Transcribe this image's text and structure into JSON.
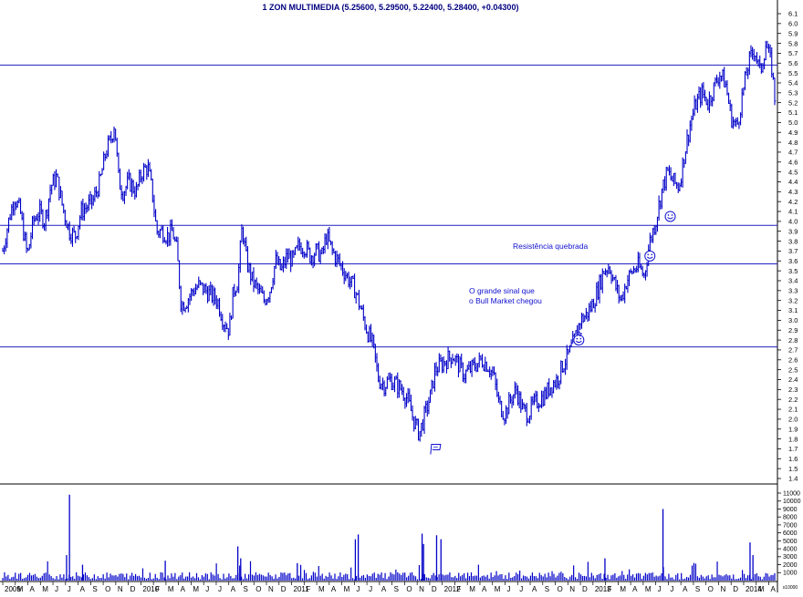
{
  "chart_data": {
    "type": "bar",
    "title": "1 ZON MULTIMEDIA (5.25600, 5.29500, 5.22400, 5.28400, +0.04300)",
    "price_panel": {
      "type": "ohlc",
      "ylim": [
        1.4,
        6.1
      ],
      "yticks": [
        "6.1",
        "6.0",
        "5.9",
        "5.8",
        "5.7",
        "5.6",
        "5.5",
        "5.4",
        "5.3",
        "5.2",
        "5.1",
        "5.0",
        "4.9",
        "4.8",
        "4.7",
        "4.6",
        "4.5",
        "4.4",
        "4.3",
        "4.2",
        "4.1",
        "4.0",
        "3.9",
        "3.8",
        "3.7",
        "3.6",
        "3.5",
        "3.4",
        "3.3",
        "3.2",
        "3.1",
        "3.0",
        "2.9",
        "2.8",
        "2.7",
        "2.6",
        "2.5",
        "2.4",
        "2.3",
        "2.2",
        "2.1",
        "2.0",
        "1.9",
        "1.8",
        "1.7",
        "1.6",
        "1.5",
        "1.4"
      ],
      "x_range": [
        2009.0,
        2014.32
      ],
      "price_path": [
        [
          2009.0,
          3.7
        ],
        [
          2009.04,
          4.0
        ],
        [
          2009.08,
          4.25
        ],
        [
          2009.12,
          4.1
        ],
        [
          2009.17,
          3.65
        ],
        [
          2009.21,
          4.0
        ],
        [
          2009.25,
          4.1
        ],
        [
          2009.29,
          4.0
        ],
        [
          2009.33,
          4.35
        ],
        [
          2009.37,
          4.45
        ],
        [
          2009.42,
          4.1
        ],
        [
          2009.46,
          3.9
        ],
        [
          2009.5,
          3.85
        ],
        [
          2009.54,
          4.1
        ],
        [
          2009.58,
          4.15
        ],
        [
          2009.62,
          4.2
        ],
        [
          2009.67,
          4.4
        ],
        [
          2009.71,
          4.7
        ],
        [
          2009.75,
          4.85
        ],
        [
          2009.77,
          5.0
        ],
        [
          2009.8,
          4.4
        ],
        [
          2009.83,
          4.3
        ],
        [
          2009.87,
          4.4
        ],
        [
          2009.92,
          4.3
        ],
        [
          2009.96,
          4.5
        ],
        [
          2010.0,
          4.55
        ],
        [
          2010.03,
          4.3
        ],
        [
          2010.06,
          3.9
        ],
        [
          2010.1,
          3.9
        ],
        [
          2010.14,
          3.85
        ],
        [
          2010.17,
          3.9
        ],
        [
          2010.2,
          3.7
        ],
        [
          2010.23,
          3.15
        ],
        [
          2010.27,
          3.2
        ],
        [
          2010.31,
          3.3
        ],
        [
          2010.35,
          3.35
        ],
        [
          2010.4,
          3.3
        ],
        [
          2010.44,
          3.25
        ],
        [
          2010.48,
          3.2
        ],
        [
          2010.52,
          3.0
        ],
        [
          2010.56,
          2.9
        ],
        [
          2010.59,
          3.3
        ],
        [
          2010.62,
          3.4
        ],
        [
          2010.65,
          3.95
        ],
        [
          2010.68,
          3.6
        ],
        [
          2010.72,
          3.4
        ],
        [
          2010.76,
          3.3
        ],
        [
          2010.8,
          3.2
        ],
        [
          2010.84,
          3.3
        ],
        [
          2010.88,
          3.6
        ],
        [
          2010.92,
          3.5
        ],
        [
          2010.96,
          3.65
        ],
        [
          2011.0,
          3.6
        ],
        [
          2011.04,
          3.75
        ],
        [
          2011.08,
          3.75
        ],
        [
          2011.12,
          3.65
        ],
        [
          2011.16,
          3.7
        ],
        [
          2011.2,
          3.65
        ],
        [
          2011.23,
          3.85
        ],
        [
          2011.27,
          3.7
        ],
        [
          2011.31,
          3.6
        ],
        [
          2011.35,
          3.5
        ],
        [
          2011.39,
          3.4
        ],
        [
          2011.43,
          3.3
        ],
        [
          2011.47,
          3.1
        ],
        [
          2011.51,
          2.9
        ],
        [
          2011.55,
          2.75
        ],
        [
          2011.59,
          2.4
        ],
        [
          2011.63,
          2.35
        ],
        [
          2011.67,
          2.4
        ],
        [
          2011.71,
          2.35
        ],
        [
          2011.75,
          2.3
        ],
        [
          2011.79,
          2.2
        ],
        [
          2011.83,
          2.0
        ],
        [
          2011.87,
          1.85
        ],
        [
          2011.91,
          2.05
        ],
        [
          2011.95,
          2.25
        ],
        [
          2011.98,
          2.5
        ],
        [
          2012.02,
          2.55
        ],
        [
          2012.06,
          2.6
        ],
        [
          2012.1,
          2.65
        ],
        [
          2012.14,
          2.55
        ],
        [
          2012.18,
          2.45
        ],
        [
          2012.22,
          2.5
        ],
        [
          2012.26,
          2.55
        ],
        [
          2012.3,
          2.6
        ],
        [
          2012.34,
          2.55
        ],
        [
          2012.38,
          2.45
        ],
        [
          2012.42,
          2.15
        ],
        [
          2012.46,
          2.05
        ],
        [
          2012.5,
          2.2
        ],
        [
          2012.54,
          2.3
        ],
        [
          2012.58,
          2.1
        ],
        [
          2012.62,
          2.05
        ],
        [
          2012.66,
          2.15
        ],
        [
          2012.7,
          2.2
        ],
        [
          2012.74,
          2.25
        ],
        [
          2012.78,
          2.35
        ],
        [
          2012.82,
          2.4
        ],
        [
          2012.86,
          2.55
        ],
        [
          2012.9,
          2.65
        ],
        [
          2012.94,
          2.8
        ],
        [
          2012.98,
          3.0
        ],
        [
          2013.02,
          3.05
        ],
        [
          2013.06,
          3.15
        ],
        [
          2013.1,
          3.3
        ],
        [
          2013.14,
          3.5
        ],
        [
          2013.18,
          3.55
        ],
        [
          2013.22,
          3.35
        ],
        [
          2013.26,
          3.2
        ],
        [
          2013.3,
          3.4
        ],
        [
          2013.34,
          3.5
        ],
        [
          2013.38,
          3.55
        ],
        [
          2013.42,
          3.45
        ],
        [
          2013.46,
          3.8
        ],
        [
          2013.5,
          4.0
        ],
        [
          2013.54,
          4.3
        ],
        [
          2013.58,
          4.5
        ],
        [
          2013.62,
          4.4
        ],
        [
          2013.66,
          4.35
        ],
        [
          2013.7,
          4.7
        ],
        [
          2013.74,
          5.0
        ],
        [
          2013.78,
          5.2
        ],
        [
          2013.82,
          5.3
        ],
        [
          2013.86,
          5.2
        ],
        [
          2013.9,
          5.35
        ],
        [
          2013.94,
          5.5
        ],
        [
          2013.98,
          5.4
        ],
        [
          2014.02,
          5.05
        ],
        [
          2014.06,
          4.95
        ],
        [
          2014.1,
          5.3
        ],
        [
          2014.14,
          5.6
        ],
        [
          2014.18,
          5.75
        ],
        [
          2014.22,
          5.5
        ],
        [
          2014.26,
          5.8
        ],
        [
          2014.3,
          5.55
        ],
        [
          2014.32,
          5.25
        ]
      ],
      "horizontal_lines": [
        5.58,
        3.96,
        3.57,
        2.73
      ],
      "annotations": [
        "Resistência quebrada",
        "O grande sinal que",
        "o Bull Market chegou"
      ],
      "smiley_icons": [
        {
          "x": 2012.97,
          "y": 2.8
        },
        {
          "x": 2013.46,
          "y": 3.65
        },
        {
          "x": 2013.6,
          "y": 4.05
        }
      ],
      "flag_icon": {
        "x": 2011.98,
        "y": 1.7
      }
    },
    "volume_panel": {
      "type": "bar",
      "ylim": [
        0,
        11500
      ],
      "yticks": [
        "11000",
        "10000",
        "9000",
        "8000",
        "7000",
        "6000",
        "5000",
        "4000",
        "3000",
        "2000",
        "1000"
      ],
      "spikes": [
        [
          2009.46,
          10800
        ],
        [
          2009.44,
          3200
        ],
        [
          2009.55,
          2000
        ],
        [
          2010.12,
          2500
        ],
        [
          2010.62,
          4300
        ],
        [
          2010.64,
          2800
        ],
        [
          2011.03,
          2200
        ],
        [
          2011.43,
          5200
        ],
        [
          2011.45,
          5800
        ],
        [
          2011.89,
          5900
        ],
        [
          2011.9,
          4600
        ],
        [
          2011.99,
          5700
        ],
        [
          2012.02,
          5200
        ],
        [
          2013.15,
          2800
        ],
        [
          2013.55,
          9000
        ],
        [
          2014.15,
          4800
        ],
        [
          2014.17,
          3200
        ]
      ],
      "unit_label": "x10000"
    },
    "x_tick_labels": [
      "2009",
      "M",
      "A",
      "M",
      "J",
      "J",
      "A",
      "S",
      "O",
      "N",
      "D",
      "2010",
      "F",
      "M",
      "A",
      "M",
      "J",
      "J",
      "A",
      "S",
      "O",
      "N",
      "D",
      "2011",
      "F",
      "M",
      "A",
      "M",
      "J",
      "J",
      "A",
      "S",
      "O",
      "N",
      "D",
      "2012",
      "F",
      "M",
      "A",
      "M",
      "J",
      "J",
      "A",
      "S",
      "O",
      "N",
      "D",
      "2013",
      "F",
      "M",
      "A",
      "M",
      "J",
      "J",
      "A",
      "S",
      "O",
      "N",
      "D",
      "2014",
      "M",
      "A"
    ],
    "colors": {
      "price": "#0000c8",
      "line": "#2020c0",
      "volume": "#0000c8",
      "text_note": "#1010d0",
      "axis": "#000000"
    }
  }
}
